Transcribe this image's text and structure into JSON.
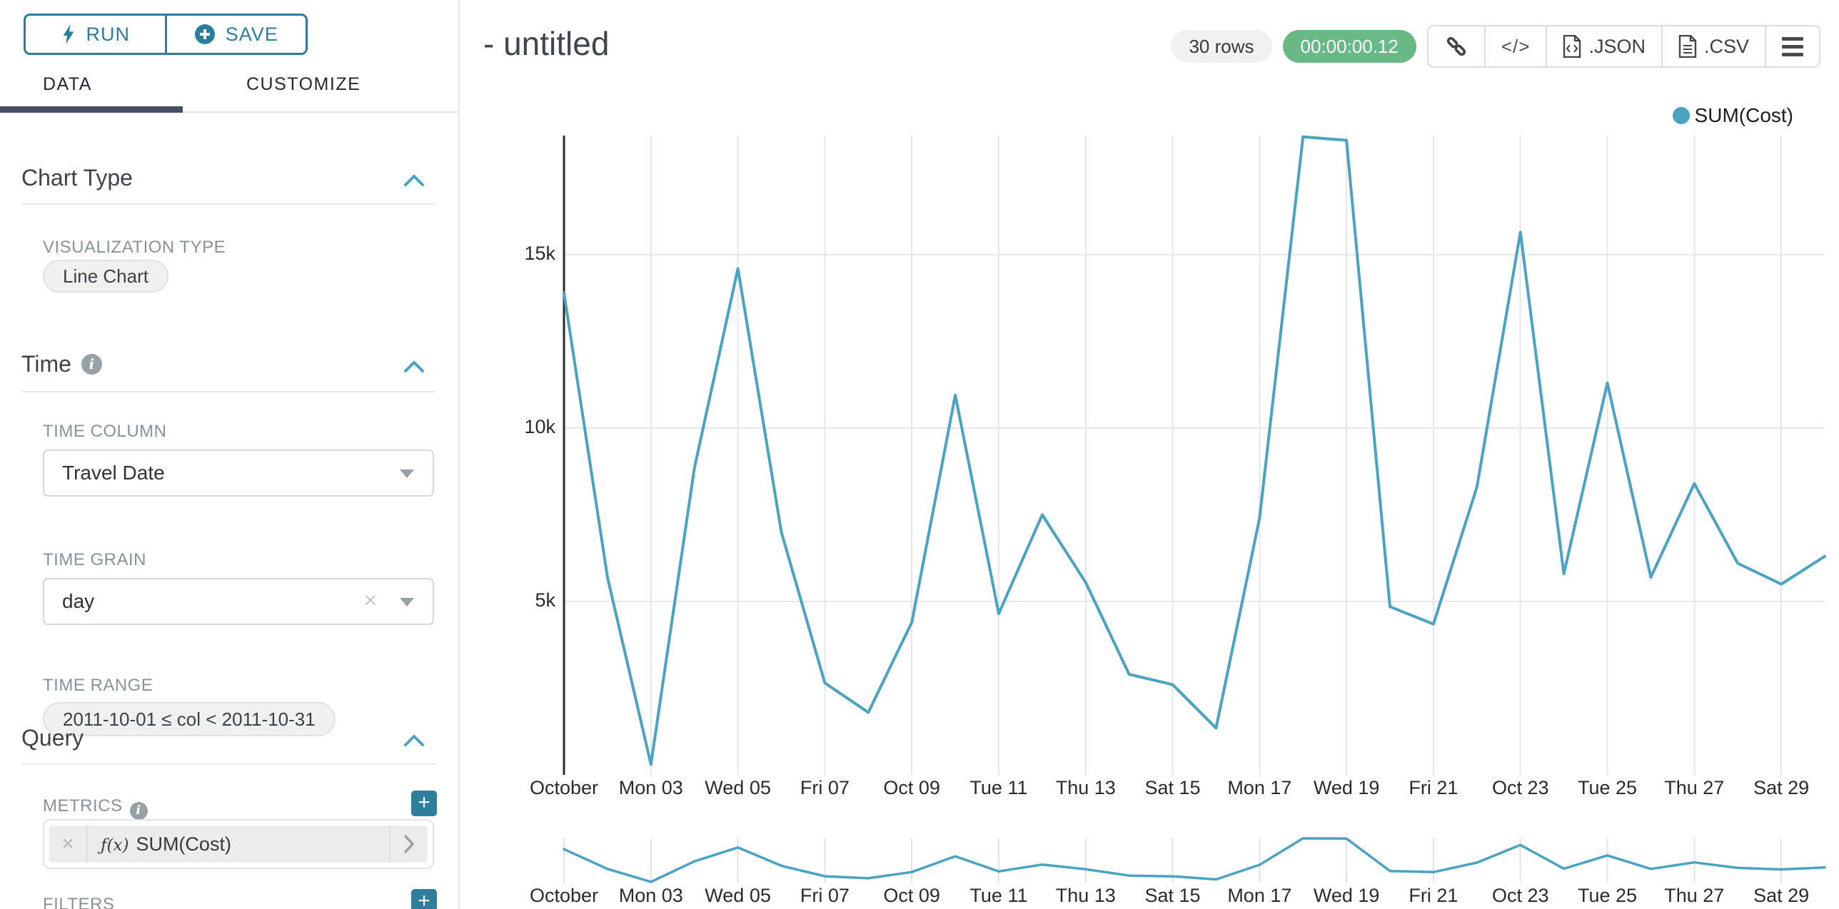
{
  "colors": {
    "accent_teal": "#2A7E9B",
    "line_blue": "#4BA3C3",
    "badge_green": "#69B987",
    "tab_underline": "#474F63",
    "gridline": "#E7E7E7",
    "label_gray": "#879399"
  },
  "sidebar": {
    "run_button": "RUN",
    "save_button": "SAVE",
    "tabs": {
      "data": "DATA",
      "customize": "CUSTOMIZE"
    },
    "chart_type": {
      "heading": "Chart Type",
      "visualization_type_label": "VISUALIZATION TYPE",
      "visualization_type_value": "Line Chart"
    },
    "time": {
      "heading": "Time",
      "time_column_label": "TIME COLUMN",
      "time_column_value": "Travel Date",
      "time_grain_label": "TIME GRAIN",
      "time_grain_value": "day",
      "time_range_label": "TIME RANGE",
      "time_range_value": "2011-10-01 ≤ col < 2011-10-31"
    },
    "query": {
      "heading": "Query",
      "metrics_label": "METRICS",
      "metric_fx": "ƒ(x)",
      "metric_value": "SUM(Cost)",
      "filters_label": "FILTERS"
    }
  },
  "header": {
    "title": "- untitled",
    "rows_badge": "30 rows",
    "timer_badge": "00:00:00.12",
    "json_button": ".JSON",
    "csv_button": ".CSV"
  },
  "icons": {
    "plus": "+",
    "clear": "×",
    "code": "</>",
    "chevron_right": "›"
  },
  "chart_data": {
    "type": "line",
    "title": "- untitled",
    "legend": [
      "SUM(Cost)"
    ],
    "legend_position": "top-right",
    "grid": true,
    "has_range_brush_minimap": true,
    "x": [
      "2011-10-01",
      "2011-10-02",
      "2011-10-03",
      "2011-10-04",
      "2011-10-05",
      "2011-10-06",
      "2011-10-07",
      "2011-10-08",
      "2011-10-09",
      "2011-10-10",
      "2011-10-11",
      "2011-10-12",
      "2011-10-13",
      "2011-10-14",
      "2011-10-15",
      "2011-10-16",
      "2011-10-17",
      "2011-10-18",
      "2011-10-19",
      "2011-10-20",
      "2011-10-21",
      "2011-10-22",
      "2011-10-23",
      "2011-10-24",
      "2011-10-25",
      "2011-10-26",
      "2011-10-27",
      "2011-10-28",
      "2011-10-29",
      "2011-10-30"
    ],
    "x_tick_labels": [
      "October",
      "Mon 03",
      "Wed 05",
      "Fri 07",
      "Oct 09",
      "Tue 11",
      "Thu 13",
      "Sat 15",
      "Mon 17",
      "Wed 19",
      "Fri 21",
      "Oct 23",
      "Tue 25",
      "Thu 27",
      "Sat 29"
    ],
    "y_ticks": [
      5000,
      10000,
      15000
    ],
    "y_tick_labels": [
      "5k",
      "10k",
      "15k"
    ],
    "ylim": [
      0,
      18500
    ],
    "series": [
      {
        "name": "SUM(Cost)",
        "color": "#4BA3C3",
        "values": [
          13900,
          5700,
          300,
          8850,
          14600,
          7000,
          2650,
          1800,
          4400,
          10950,
          4650,
          7500,
          5550,
          2900,
          2600,
          1350,
          7400,
          18400,
          18300,
          4850,
          4350,
          8300,
          15650,
          5800,
          11300,
          5700,
          8400,
          6100,
          5500,
          6300
        ]
      }
    ]
  }
}
